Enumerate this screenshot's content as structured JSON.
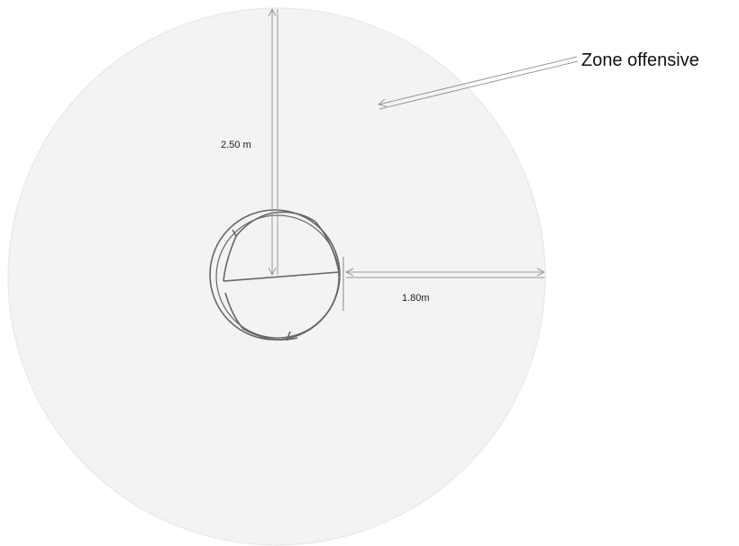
{
  "labels": {
    "zone": "Zone offensive",
    "vertical": "2.50 m",
    "horizontal": "1.80m"
  }
}
